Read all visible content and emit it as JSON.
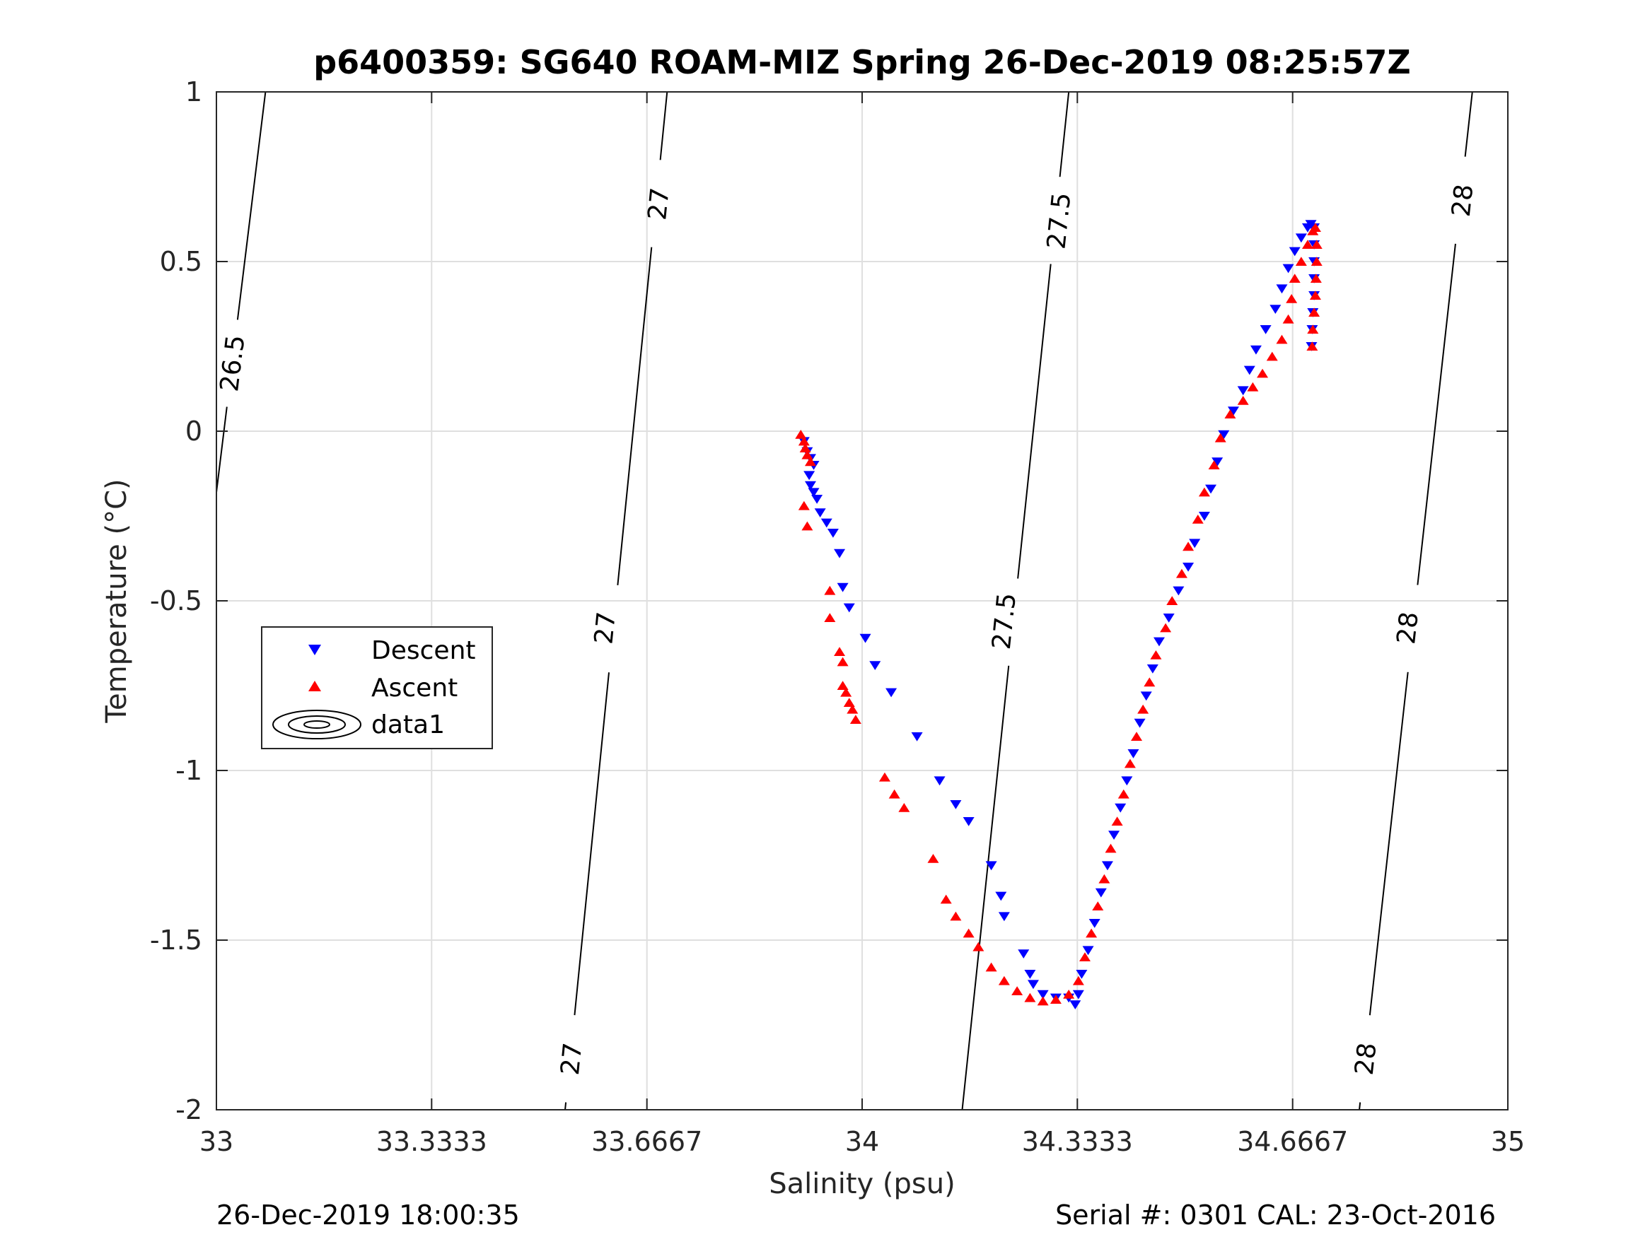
{
  "chart_data": {
    "type": "scatter",
    "title": "p6400359: SG640 ROAM-MIZ Spring 26-Dec-2019 08:25:57Z",
    "xlabel": "Salinity (psu)",
    "ylabel": "Temperature (°C)",
    "xlim": [
      33,
      35
    ],
    "ylim": [
      -2,
      1
    ],
    "xticks": [
      33,
      33.3333,
      33.6667,
      34,
      34.3333,
      34.6667,
      35
    ],
    "xtick_labels": [
      "33",
      "33.3333",
      "33.6667",
      "34",
      "34.3333",
      "34.6667",
      "35"
    ],
    "yticks": [
      -2,
      -1.5,
      -1,
      -0.5,
      0,
      0.5,
      1
    ],
    "ytick_labels": [
      "-2",
      "-1.5",
      "-1",
      "-0.5",
      "0",
      "0.5",
      "1"
    ],
    "grid": true,
    "legend_position": "left-middle",
    "series": [
      {
        "name": "Descent",
        "color": "#0000ff",
        "marker": "triangle-down",
        "points": [
          [
            33.91,
            -0.03
          ],
          [
            33.915,
            -0.06
          ],
          [
            33.92,
            -0.08
          ],
          [
            33.925,
            -0.1
          ],
          [
            33.918,
            -0.13
          ],
          [
            33.92,
            -0.16
          ],
          [
            33.925,
            -0.18
          ],
          [
            33.93,
            -0.2
          ],
          [
            33.935,
            -0.24
          ],
          [
            33.945,
            -0.27
          ],
          [
            33.955,
            -0.3
          ],
          [
            33.965,
            -0.36
          ],
          [
            33.97,
            -0.46
          ],
          [
            33.98,
            -0.52
          ],
          [
            34.005,
            -0.61
          ],
          [
            34.02,
            -0.69
          ],
          [
            34.045,
            -0.77
          ],
          [
            34.085,
            -0.9
          ],
          [
            34.12,
            -1.03
          ],
          [
            34.145,
            -1.1
          ],
          [
            34.165,
            -1.15
          ],
          [
            34.2,
            -1.28
          ],
          [
            34.215,
            -1.37
          ],
          [
            34.22,
            -1.43
          ],
          [
            34.25,
            -1.54
          ],
          [
            34.26,
            -1.6
          ],
          [
            34.265,
            -1.63
          ],
          [
            34.28,
            -1.66
          ],
          [
            34.3,
            -1.67
          ],
          [
            34.32,
            -1.67
          ],
          [
            34.33,
            -1.69
          ],
          [
            34.335,
            -1.66
          ],
          [
            34.34,
            -1.6
          ],
          [
            34.35,
            -1.53
          ],
          [
            34.36,
            -1.45
          ],
          [
            34.37,
            -1.36
          ],
          [
            34.38,
            -1.28
          ],
          [
            34.39,
            -1.19
          ],
          [
            34.4,
            -1.11
          ],
          [
            34.41,
            -1.03
          ],
          [
            34.42,
            -0.95
          ],
          [
            34.43,
            -0.86
          ],
          [
            34.44,
            -0.78
          ],
          [
            34.45,
            -0.7
          ],
          [
            34.46,
            -0.62
          ],
          [
            34.475,
            -0.55
          ],
          [
            34.49,
            -0.47
          ],
          [
            34.505,
            -0.4
          ],
          [
            34.515,
            -0.33
          ],
          [
            34.53,
            -0.25
          ],
          [
            34.54,
            -0.17
          ],
          [
            34.55,
            -0.09
          ],
          [
            34.56,
            -0.01
          ],
          [
            34.575,
            0.06
          ],
          [
            34.59,
            0.12
          ],
          [
            34.6,
            0.18
          ],
          [
            34.61,
            0.24
          ],
          [
            34.625,
            0.3
          ],
          [
            34.64,
            0.36
          ],
          [
            34.65,
            0.42
          ],
          [
            34.66,
            0.48
          ],
          [
            34.67,
            0.53
          ],
          [
            34.68,
            0.57
          ],
          [
            34.69,
            0.6
          ],
          [
            34.695,
            0.61
          ],
          [
            34.7,
            0.6
          ],
          [
            34.7,
            0.55
          ],
          [
            34.7,
            0.5
          ],
          [
            34.7,
            0.45
          ],
          [
            34.7,
            0.4
          ],
          [
            34.698,
            0.35
          ],
          [
            34.697,
            0.3
          ],
          [
            34.696,
            0.25
          ]
        ]
      },
      {
        "name": "Ascent",
        "color": "#ff0000",
        "marker": "triangle-up",
        "points": [
          [
            33.905,
            -0.01
          ],
          [
            33.91,
            -0.03
          ],
          [
            33.912,
            -0.05
          ],
          [
            33.915,
            -0.07
          ],
          [
            33.92,
            -0.09
          ],
          [
            33.91,
            -0.22
          ],
          [
            33.915,
            -0.28
          ],
          [
            33.95,
            -0.47
          ],
          [
            33.95,
            -0.55
          ],
          [
            33.965,
            -0.65
          ],
          [
            33.97,
            -0.68
          ],
          [
            33.97,
            -0.75
          ],
          [
            33.975,
            -0.77
          ],
          [
            33.98,
            -0.8
          ],
          [
            33.985,
            -0.82
          ],
          [
            33.99,
            -0.85
          ],
          [
            34.035,
            -1.02
          ],
          [
            34.05,
            -1.07
          ],
          [
            34.065,
            -1.11
          ],
          [
            34.11,
            -1.26
          ],
          [
            34.13,
            -1.38
          ],
          [
            34.145,
            -1.43
          ],
          [
            34.165,
            -1.48
          ],
          [
            34.18,
            -1.52
          ],
          [
            34.2,
            -1.58
          ],
          [
            34.22,
            -1.62
          ],
          [
            34.24,
            -1.65
          ],
          [
            34.26,
            -1.67
          ],
          [
            34.28,
            -1.68
          ],
          [
            34.3,
            -1.675
          ],
          [
            34.32,
            -1.66
          ],
          [
            34.335,
            -1.62
          ],
          [
            34.345,
            -1.55
          ],
          [
            34.355,
            -1.48
          ],
          [
            34.365,
            -1.4
          ],
          [
            34.375,
            -1.32
          ],
          [
            34.385,
            -1.23
          ],
          [
            34.395,
            -1.15
          ],
          [
            34.405,
            -1.07
          ],
          [
            34.415,
            -0.98
          ],
          [
            34.425,
            -0.9
          ],
          [
            34.435,
            -0.82
          ],
          [
            34.445,
            -0.74
          ],
          [
            34.455,
            -0.66
          ],
          [
            34.47,
            -0.58
          ],
          [
            34.48,
            -0.5
          ],
          [
            34.495,
            -0.42
          ],
          [
            34.505,
            -0.34
          ],
          [
            34.52,
            -0.26
          ],
          [
            34.53,
            -0.18
          ],
          [
            34.545,
            -0.1
          ],
          [
            34.555,
            -0.02
          ],
          [
            34.57,
            0.05
          ],
          [
            34.59,
            0.09
          ],
          [
            34.605,
            0.13
          ],
          [
            34.62,
            0.17
          ],
          [
            34.635,
            0.22
          ],
          [
            34.65,
            0.27
          ],
          [
            34.66,
            0.33
          ],
          [
            34.665,
            0.39
          ],
          [
            34.67,
            0.45
          ],
          [
            34.68,
            0.5
          ],
          [
            34.69,
            0.55
          ],
          [
            34.698,
            0.59
          ],
          [
            34.702,
            0.6
          ],
          [
            34.704,
            0.55
          ],
          [
            34.704,
            0.5
          ],
          [
            34.703,
            0.45
          ],
          [
            34.702,
            0.4
          ],
          [
            34.7,
            0.35
          ],
          [
            34.698,
            0.3
          ],
          [
            34.697,
            0.25
          ]
        ]
      }
    ],
    "contours": [
      {
        "label": "26.5",
        "points": [
          [
            33.076,
            1
          ],
          [
            33.0,
            -0.18
          ]
        ],
        "label_at": [
          [
            33.025,
            0.2
          ]
        ]
      },
      {
        "label": "27",
        "points": [
          [
            33.698,
            1
          ],
          [
            33.54,
            -2
          ]
        ],
        "label_at": [
          [
            33.685,
            0.67
          ],
          [
            33.602,
            -0.58
          ],
          [
            33.55,
            -1.85
          ]
        ]
      },
      {
        "label": "27.5",
        "points": [
          [
            34.32,
            1
          ],
          [
            34.155,
            -2
          ]
        ],
        "label_at": [
          [
            34.305,
            0.62
          ],
          [
            34.22,
            -0.56
          ]
        ]
      },
      {
        "label": "28",
        "points": [
          [
            34.945,
            1
          ],
          [
            34.77,
            -2
          ]
        ],
        "label_at": [
          [
            34.93,
            0.68
          ],
          [
            34.845,
            -0.58
          ],
          [
            34.78,
            -1.85
          ]
        ]
      }
    ],
    "legend": [
      "Descent",
      "Ascent",
      "data1"
    ],
    "footer_left": "26-Dec-2019 18:00:35",
    "footer_right": "Serial #: 0301  CAL: 23-Oct-2016"
  }
}
